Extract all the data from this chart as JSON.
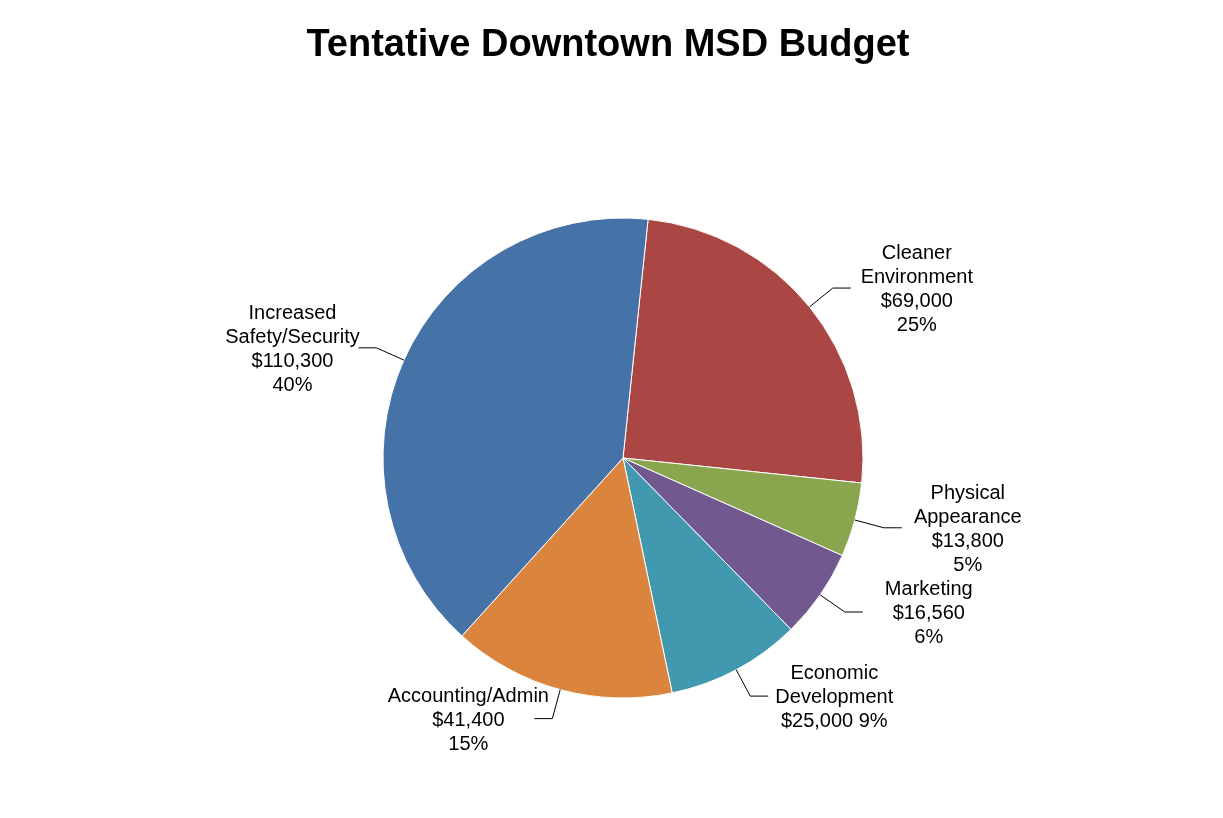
{
  "chart_data": {
    "type": "pie",
    "title": "Tentative Downtown MSD Budget",
    "categories": [
      "Cleaner Environment",
      "Physical Appearance",
      "Marketing",
      "Economic Development",
      "Accounting/Admin",
      "Increased Safety/Security"
    ],
    "values": [
      69000,
      13800,
      16560,
      25000,
      41400,
      110300
    ],
    "value_labels": [
      "$69,000\n25%",
      "$13,800\n5%",
      "$16,560\n6%",
      "$25,000  9%",
      "$41,400\n15%",
      "$110,300\n40%"
    ],
    "colors": [
      "#aa4643",
      "#89a54e",
      "#71588f",
      "#4198af",
      "#db843d",
      "#4572a7"
    ]
  }
}
